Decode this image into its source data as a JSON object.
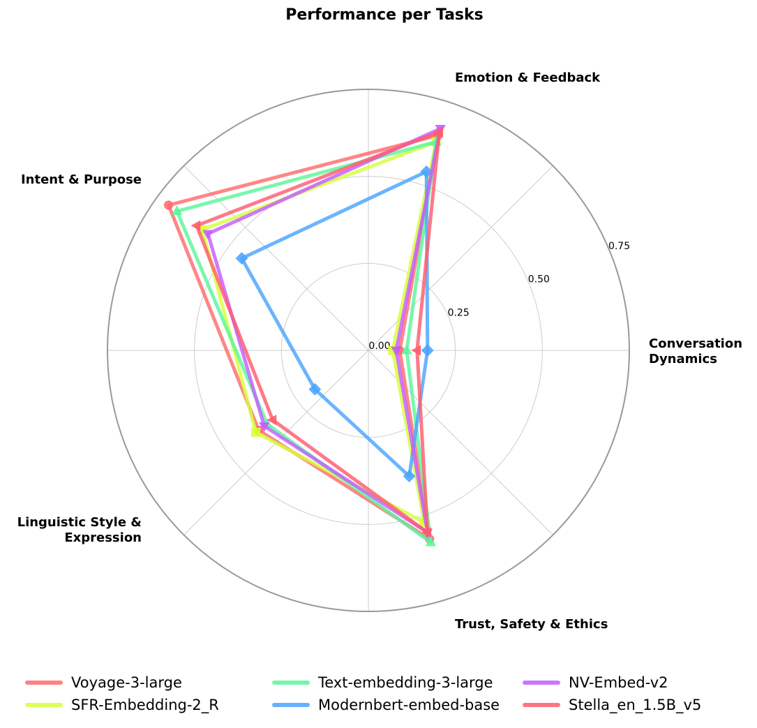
{
  "chart_data": {
    "type": "radar",
    "title": "Performance per Tasks",
    "axes": [
      "Conversation\nDynamics",
      "Emotion & Feedback",
      "Intent & Purpose",
      "Linguistic Style &\nExpression",
      "Trust, Safety & Ethics"
    ],
    "rlim": [
      0,
      0.75
    ],
    "rticks": [
      "0.00",
      "0.25",
      "0.50",
      "0.75"
    ],
    "rtick_values": [
      0,
      0.25,
      0.5,
      0.75
    ],
    "grid": true,
    "legend_position": "bottom",
    "series": [
      {
        "name": "Voyage-3-large",
        "color": "#ff6b6b",
        "marker": "circle",
        "values": [
          0.09,
          0.65,
          0.71,
          0.39,
          0.57
        ]
      },
      {
        "name": "SFR-Embedding-2_R",
        "color": "#d7ff3a",
        "marker": "square",
        "values": [
          0.07,
          0.63,
          0.59,
          0.4,
          0.52
        ]
      },
      {
        "name": "Text-embedding-3-large",
        "color": "#5cf59a",
        "marker": "triangle-up",
        "values": [
          0.11,
          0.63,
          0.68,
          0.36,
          0.58
        ]
      },
      {
        "name": "Modernbert-embed-base",
        "color": "#4aa3ff",
        "marker": "diamond",
        "values": [
          0.17,
          0.54,
          0.45,
          0.19,
          0.38
        ]
      },
      {
        "name": "NV-Embed-v2",
        "color": "#c45cff",
        "marker": "triangle-down",
        "values": [
          0.08,
          0.67,
          0.57,
          0.37,
          0.55
        ]
      },
      {
        "name": "Stella_en_1.5B_v5",
        "color": "#ff5c6e",
        "marker": "triangle-left",
        "values": [
          0.14,
          0.66,
          0.61,
          0.34,
          0.55
        ]
      }
    ]
  }
}
